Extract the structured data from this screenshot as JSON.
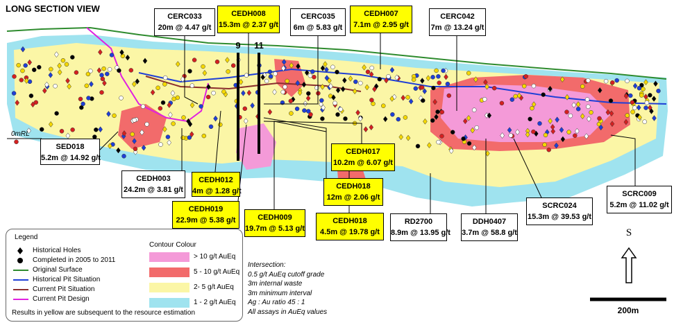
{
  "header": {
    "title": "LONG SECTION VIEW"
  },
  "sections": [
    "9",
    "11"
  ],
  "datum": "0mRL",
  "callouts": [
    {
      "hole": "CERC033",
      "result": "20m @ 4.47 g/t"
    },
    {
      "hole": "CEDH008",
      "result": "15.3m @ 2.37 g/t"
    },
    {
      "hole": "CERC035",
      "result": "6m @ 5.83 g/t"
    },
    {
      "hole": "CEDH007",
      "result": "7.1m @ 2.95 g/t"
    },
    {
      "hole": "CERC042",
      "result": "7m @ 13.24 g/t"
    },
    {
      "hole": "SED018",
      "result": "5.2m @ 14.92 g/t"
    },
    {
      "hole": "CEDH003",
      "result": "24.2m @ 3.81 g/t"
    },
    {
      "hole": "CEDH012",
      "result": "4m @ 1.28 g/t"
    },
    {
      "hole": "CEDH019",
      "result": "22.9m @ 5.38 g/t"
    },
    {
      "hole": "CEDH009",
      "result": "19.7m @ 5.13 g/t"
    },
    {
      "hole": "CEDH018",
      "result": "4.5m @ 19.78 g/t"
    },
    {
      "hole": "CEDH018",
      "result": "12m @ 2.06 g/t"
    },
    {
      "hole": "CEDH017",
      "result": "10.2m @ 6.07 g/t"
    },
    {
      "hole": "RD2700",
      "result": "8.9m @ 13.95 g/t"
    },
    {
      "hole": "DDH0407",
      "result": "3.7m @ 58.8 g/t"
    },
    {
      "hole": "SCRC024",
      "result": "15.3m @ 39.53 g/t"
    },
    {
      "hole": "SCRC009",
      "result": "5.2m @ 11.02 g/t"
    }
  ],
  "legend": {
    "title": "Legend",
    "items": [
      "Historical Holes",
      "Completed in 2005 to 2011",
      "Original Surface",
      "Historical Pit Situation",
      "Current Pit Situation",
      "Current Pit Design"
    ],
    "contour_title": "Contour Colour",
    "contours": [
      "> 10 g/t AuEq",
      "5 - 10 g/t AuEq",
      "2- 5 g/t AuEq",
      "1 - 2 g/t AuEq"
    ],
    "footnote": "Results in yellow are subsequent to the resource estimation"
  },
  "notes": [
    "Intersection:",
    "0.5 g/t AuEq cutoff grade",
    "3m internal waste",
    "3m minimum interval",
    "Ag : Au ratio 45 : 1",
    "All assays in AuEq values"
  ],
  "north": "S",
  "scale": "200m"
}
